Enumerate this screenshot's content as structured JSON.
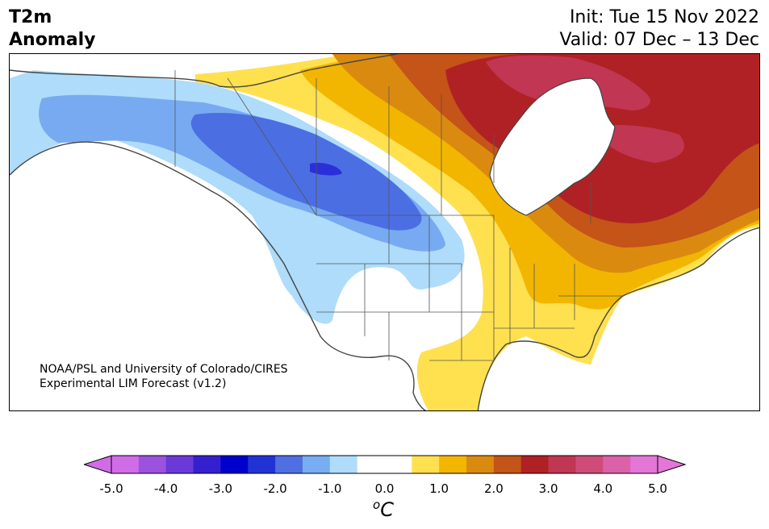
{
  "title": {
    "left_line1": "T2m",
    "left_line2": "Anomaly",
    "init": "Init: Tue 15 Nov 2022",
    "valid": "Valid: 07 Dec – 13 Dec"
  },
  "credit": {
    "line1": "NOAA/PSL and University of Colorado/CIRES",
    "line2": "Experimental LIM Forecast (v1.2)"
  },
  "colorbar": {
    "unit_base": "C",
    "unit_sup": "o",
    "ticks": [
      "-5.0",
      "-4.0",
      "-3.0",
      "-2.0",
      "-1.0",
      "0.0",
      "1.0",
      "2.0",
      "3.0",
      "4.0",
      "5.0"
    ],
    "colors": [
      "#d16ce8",
      "#9b52de",
      "#6a39d8",
      "#3520cf",
      "#0000cd",
      "#2233d5",
      "#4f6fe2",
      "#76aef1",
      "#aedcfa",
      "#ffffff",
      "#ffffff",
      "#ffe04f",
      "#f2b600",
      "#db8a10",
      "#c45417",
      "#b02125",
      "#c13652",
      "#cf4c78",
      "#db62a8",
      "#e476d7"
    ],
    "under_color": "#d16ce8",
    "over_color": "#e476d7"
  },
  "anomaly_colors": {
    "neg4": "#2a2fd8",
    "neg3": "#4c6ee3",
    "neg2": "#78aaf1",
    "neg1": "#aedcfa",
    "pos1": "#ffe04f",
    "pos2": "#f2b600",
    "pos3": "#db8a10",
    "pos4": "#c45417",
    "pos5": "#b02125",
    "pos6": "#c13652"
  }
}
